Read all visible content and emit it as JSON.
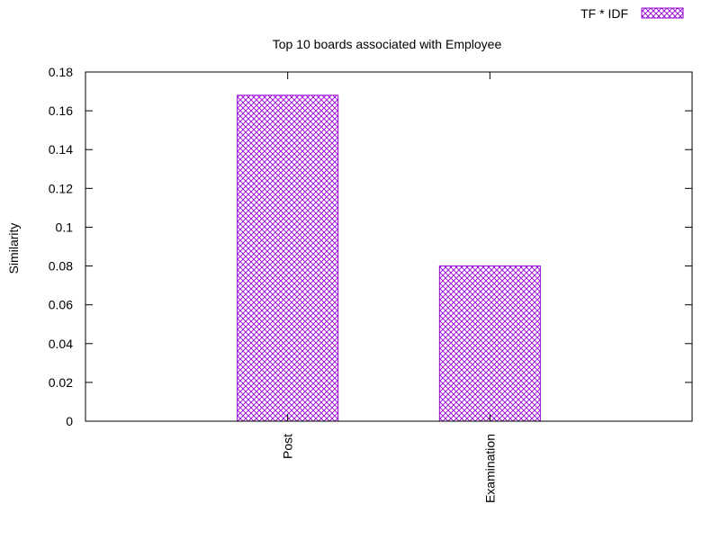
{
  "chart_data": {
    "type": "bar",
    "title": "Top 10 boards associated with Employee",
    "xlabel": "",
    "ylabel": "Similarity",
    "categories": [
      "Post",
      "Examination"
    ],
    "series": [
      {
        "name": "TF * IDF",
        "values": [
          0.168,
          0.08
        ],
        "color": "#9400d3",
        "pattern": "crosshatch"
      }
    ],
    "ylim": [
      0,
      0.18
    ],
    "yticks": [
      "0",
      "0.02",
      "0.04",
      "0.06",
      "0.08",
      "0.1",
      "0.12",
      "0.14",
      "0.16",
      "0.18"
    ],
    "legend_position": "top-right",
    "grid": false
  }
}
